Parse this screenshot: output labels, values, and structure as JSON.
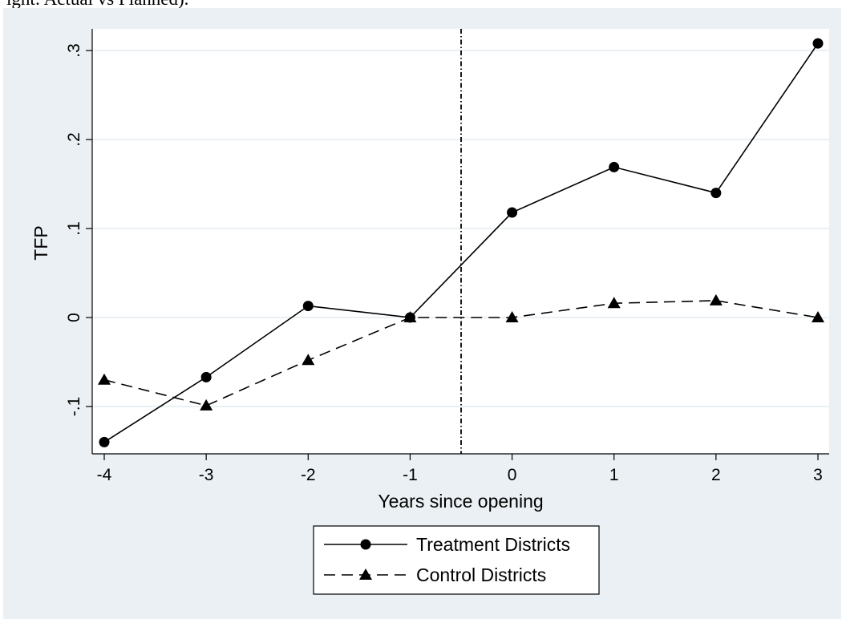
{
  "caption_fragment": "ight: Actual vs Planned).",
  "chart_data": {
    "type": "line",
    "xlabel": "Years since opening",
    "ylabel": "TFP",
    "x": [
      -4,
      -3,
      -2,
      -1,
      0,
      1,
      2,
      3
    ],
    "xlim": [
      -4,
      3
    ],
    "ylim": [
      -0.15,
      0.32
    ],
    "xticks": [
      -4,
      -3,
      -2,
      -1,
      0,
      1,
      2,
      3
    ],
    "xtick_labels": [
      "-4",
      "-3",
      "-2",
      "-1",
      "0",
      "1",
      "2",
      "3"
    ],
    "yticks": [
      -0.1,
      0,
      0.1,
      0.2,
      0.3
    ],
    "ytick_labels": [
      "-.1",
      "0",
      ".1",
      ".2",
      ".3"
    ],
    "vline_x": -0.5,
    "grid": true,
    "legend_position": "bottom-center",
    "series": [
      {
        "name": "Treatment Districts",
        "values": [
          -0.14,
          -0.067,
          0.013,
          0.0,
          0.118,
          0.169,
          0.14,
          0.308
        ],
        "marker": "circle",
        "line_style": "solid",
        "color": "#000000"
      },
      {
        "name": "Control Districts",
        "values": [
          -0.07,
          -0.099,
          -0.048,
          0.0,
          0.0,
          0.016,
          0.019,
          0.0
        ],
        "marker": "triangle",
        "line_style": "dashed",
        "color": "#000000"
      }
    ]
  },
  "colors": {
    "figure_background": "#eaf0f3",
    "plot_background": "#ffffff",
    "grid": "#e4ecef",
    "ink": "#000000"
  }
}
